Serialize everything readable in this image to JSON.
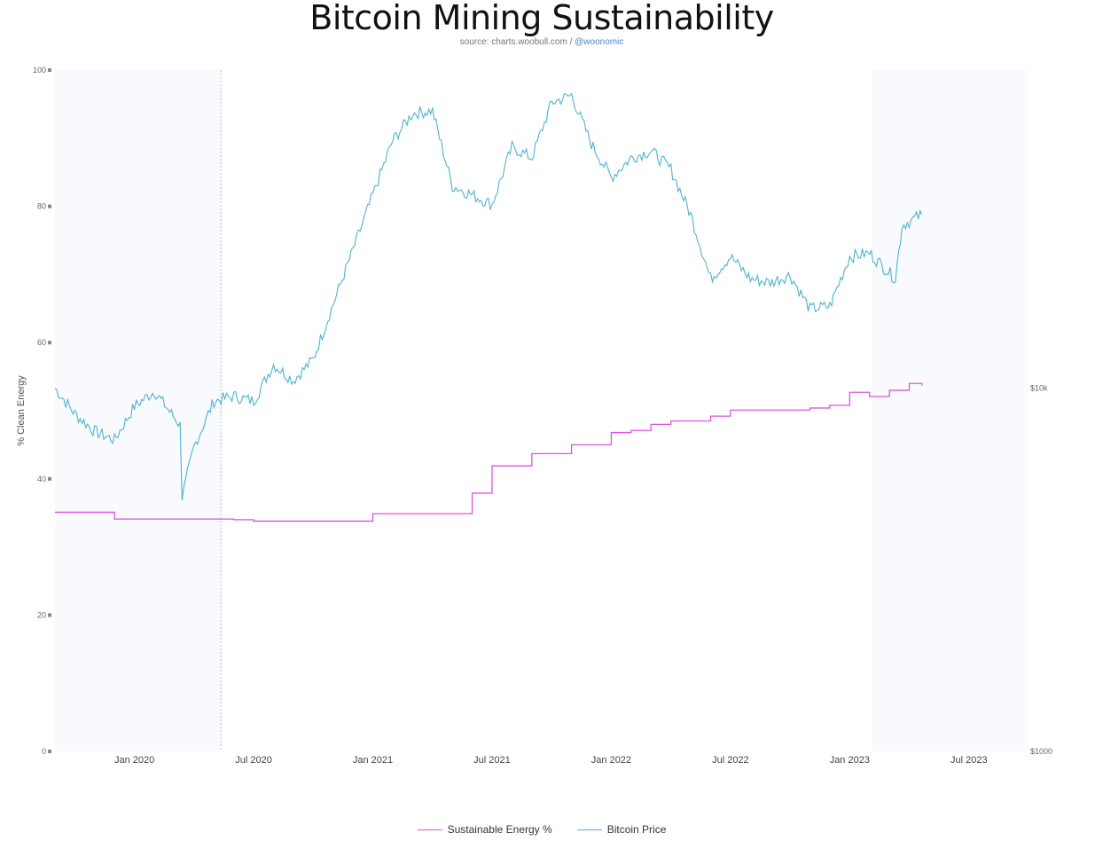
{
  "header": {
    "title": "Bitcoin Mining Sustainability",
    "source_prefix": "source: charts.woobull.com / ",
    "source_handle": "@woonomic"
  },
  "colors": {
    "sustainable": "#dd55dd",
    "price": "#4fb3cf",
    "shade": "#f8fafd"
  },
  "chart_data": {
    "type": "line",
    "title": "Bitcoin Mining Sustainability",
    "ylabel": "% Clean Energy",
    "ylim": [
      0,
      100
    ],
    "y_ticks": [
      "0",
      "20",
      "40",
      "60",
      "80",
      "100"
    ],
    "y2_scale": "log",
    "y2_ticks": [
      {
        "label": "$10k",
        "value": 10000
      },
      {
        "label": "$1000",
        "value": 1000
      }
    ],
    "x_ticks": [
      "Jan 2020",
      "Jul 2020",
      "Jan 2021",
      "Jul 2021",
      "Jan 2022",
      "Jul 2022",
      "Jan 2023",
      "Jul 2023"
    ],
    "x_range": [
      "2019-09",
      "2023-10"
    ],
    "legend": [
      "Sustainable Energy %",
      "Bitcoin Price"
    ],
    "series": [
      {
        "name": "Sustainable Energy %",
        "axis": "left",
        "step": true,
        "points": [
          [
            "2019-09",
            35.1
          ],
          [
            "2019-12",
            34.1
          ],
          [
            "2020-06",
            34.0
          ],
          [
            "2020-07",
            33.8
          ],
          [
            "2021-01",
            34.9
          ],
          [
            "2021-06",
            37.9
          ],
          [
            "2021-07",
            41.9
          ],
          [
            "2021-09",
            43.7
          ],
          [
            "2021-11",
            45.0
          ],
          [
            "2022-01",
            46.8
          ],
          [
            "2022-02",
            47.1
          ],
          [
            "2022-03",
            48.0
          ],
          [
            "2022-04",
            48.5
          ],
          [
            "2022-06",
            49.2
          ],
          [
            "2022-07",
            50.1
          ],
          [
            "2022-11",
            50.4
          ],
          [
            "2022-12",
            50.8
          ],
          [
            "2023-01",
            52.7
          ],
          [
            "2023-02",
            52.1
          ],
          [
            "2023-03",
            53.0
          ],
          [
            "2023-04",
            54.0
          ],
          [
            "2023-04-20",
            53.7
          ]
        ]
      },
      {
        "name": "Bitcoin Price",
        "axis": "right",
        "points": [
          [
            "2019-09",
            10000
          ],
          [
            "2019-10",
            8500
          ],
          [
            "2019-11",
            7600
          ],
          [
            "2019-12",
            7200
          ],
          [
            "2020-01",
            8900
          ],
          [
            "2020-02",
            9800
          ],
          [
            "2020-03-10",
            7900
          ],
          [
            "2020-03-13",
            5000
          ],
          [
            "2020-04",
            6900
          ],
          [
            "2020-05",
            9200
          ],
          [
            "2020-06",
            9500
          ],
          [
            "2020-07",
            9200
          ],
          [
            "2020-08",
            11600
          ],
          [
            "2020-09",
            10500
          ],
          [
            "2020-10",
            12000
          ],
          [
            "2020-11",
            17000
          ],
          [
            "2020-12",
            24000
          ],
          [
            "2021-01",
            34000
          ],
          [
            "2021-02",
            48000
          ],
          [
            "2021-03",
            57000
          ],
          [
            "2021-04",
            58000
          ],
          [
            "2021-05",
            36000
          ],
          [
            "2021-06",
            34000
          ],
          [
            "2021-07",
            32000
          ],
          [
            "2021-08",
            46000
          ],
          [
            "2021-09",
            43000
          ],
          [
            "2021-10",
            61000
          ],
          [
            "2021-11",
            64000
          ],
          [
            "2021-12",
            47000
          ],
          [
            "2022-01",
            38000
          ],
          [
            "2022-02",
            43000
          ],
          [
            "2022-03",
            45000
          ],
          [
            "2022-04",
            40000
          ],
          [
            "2022-05",
            30000
          ],
          [
            "2022-06",
            20000
          ],
          [
            "2022-07",
            23000
          ],
          [
            "2022-08",
            20000
          ],
          [
            "2022-09",
            19500
          ],
          [
            "2022-10",
            20500
          ],
          [
            "2022-11",
            16500
          ],
          [
            "2022-12",
            16800
          ],
          [
            "2023-01",
            23000
          ],
          [
            "2023-02",
            23500
          ],
          [
            "2023-03-10",
            20000
          ],
          [
            "2023-03-20",
            28000
          ],
          [
            "2023-04-20",
            30000
          ]
        ]
      }
    ]
  }
}
